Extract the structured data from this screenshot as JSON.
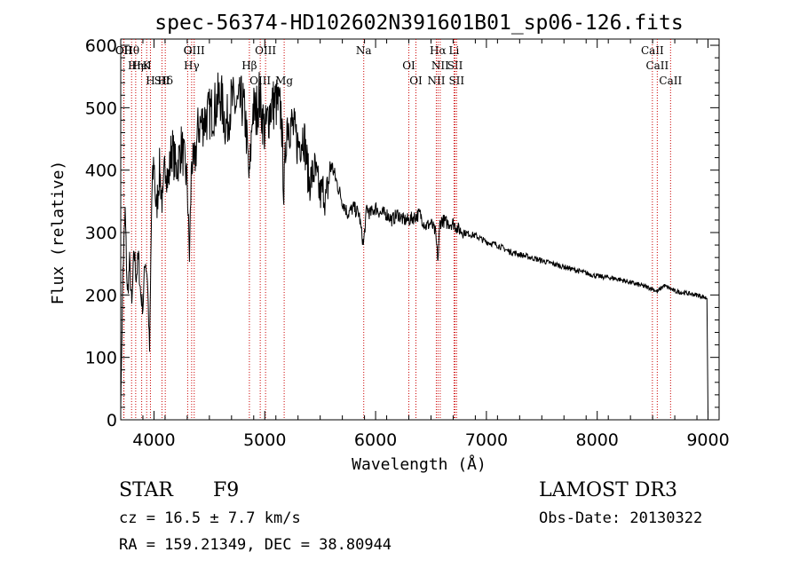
{
  "chart_data": {
    "type": "line",
    "title": "spec-56374-HD102602N391601B01_sp06-126.fits",
    "xlabel": "Wavelength (Å)",
    "ylabel": "Flux (relative)",
    "xlim": [
      3700,
      9100
    ],
    "ylim": [
      0,
      610
    ],
    "xticks": [
      4000,
      5000,
      6000,
      7000,
      8000,
      9000
    ],
    "yticks": [
      0,
      100,
      200,
      300,
      400,
      500,
      600
    ],
    "series": [
      {
        "name": "spectrum",
        "x": [
          3700,
          3720,
          3740,
          3760,
          3780,
          3800,
          3820,
          3840,
          3860,
          3880,
          3900,
          3920,
          3940,
          3960,
          3980,
          4000,
          4020,
          4050,
          4080,
          4100,
          4130,
          4160,
          4200,
          4250,
          4300,
          4320,
          4340,
          4360,
          4400,
          4450,
          4500,
          4550,
          4600,
          4650,
          4700,
          4750,
          4800,
          4830,
          4861,
          4890,
          4920,
          4950,
          5000,
          5050,
          5100,
          5150,
          5172,
          5200,
          5250,
          5300,
          5350,
          5400,
          5450,
          5500,
          5530,
          5550,
          5600,
          5650,
          5700,
          5750,
          5800,
          5850,
          5890,
          5920,
          5950,
          6000,
          6050,
          6100,
          6150,
          6200,
          6250,
          6300,
          6350,
          6400,
          6450,
          6500,
          6540,
          6563,
          6580,
          6600,
          6650,
          6700,
          6750,
          6800,
          6900,
          7000,
          7100,
          7200,
          7300,
          7400,
          7500,
          7600,
          7700,
          7800,
          7900,
          8000,
          8100,
          8200,
          8300,
          8400,
          8500,
          8542,
          8600,
          8662,
          8700,
          8800,
          8900,
          8990,
          9000
        ],
        "values": [
          20,
          240,
          330,
          200,
          250,
          180,
          270,
          230,
          260,
          200,
          180,
          260,
          230,
          110,
          350,
          420,
          330,
          400,
          340,
          420,
          380,
          440,
          400,
          440,
          380,
          260,
          420,
          400,
          470,
          480,
          490,
          500,
          520,
          470,
          510,
          500,
          510,
          470,
          380,
          500,
          490,
          520,
          460,
          500,
          510,
          490,
          360,
          480,
          470,
          440,
          460,
          380,
          400,
          360,
          370,
          350,
          410,
          380,
          350,
          330,
          340,
          330,
          280,
          340,
          330,
          340,
          330,
          330,
          320,
          330,
          320,
          320,
          325,
          330,
          310,
          315,
          300,
          255,
          315,
          320,
          315,
          315,
          305,
          300,
          295,
          285,
          280,
          270,
          265,
          260,
          255,
          250,
          245,
          240,
          235,
          230,
          228,
          225,
          220,
          215,
          210,
          205,
          215,
          210,
          206,
          203,
          200,
          195,
          10
        ]
      }
    ],
    "spectral_lines": [
      {
        "label": "Hθ",
        "x": 3798
      },
      {
        "label": "K",
        "x": 3934
      },
      {
        "label": "Hδ",
        "x": 4102
      },
      {
        "label": "OIII",
        "x": 4363
      },
      {
        "label": "Hγ",
        "x": 4340
      },
      {
        "label": "OIII",
        "x": 4959
      },
      {
        "label": "OIII",
        "x": 5007
      },
      {
        "label": "Hβ",
        "x": 4861
      },
      {
        "label": "Mg",
        "x": 5175
      },
      {
        "label": "Na",
        "x": 5893
      },
      {
        "label": "OI",
        "x": 6300
      },
      {
        "label": "OI",
        "x": 6364
      },
      {
        "label": "Hα",
        "x": 6563
      },
      {
        "label": "SII",
        "x": 6717
      },
      {
        "label": "NII",
        "x": 6548
      },
      {
        "label": "Li",
        "x": 6708
      },
      {
        "label": "NII",
        "x": 6583
      },
      {
        "label": "SII",
        "x": 6731
      },
      {
        "label": "CaII",
        "x": 8498
      },
      {
        "label": "CaII",
        "x": 8542
      },
      {
        "label": "CaII",
        "x": 8662
      },
      {
        "label": "OII",
        "x": 3727
      },
      {
        "label": "HeI",
        "x": 3889
      },
      {
        "label": "SII",
        "x": 4072
      },
      {
        "label": "OII",
        "x": 3729
      },
      {
        "label": "Hη",
        "x": 3835
      },
      {
        "label": "H",
        "x": 3968
      },
      {
        "label": "G",
        "x": 4304
      }
    ]
  },
  "info": {
    "class": "STAR",
    "subclass": "F9",
    "survey": "LAMOST DR3",
    "cz": "cz = 16.5 ± 7.7 km/s",
    "obsdate": "Obs-Date: 20130322",
    "radec": "RA = 159.21349, DEC =  38.80944"
  },
  "colors": {
    "line_marker": "#cc0000",
    "spectrum": "#000000"
  }
}
